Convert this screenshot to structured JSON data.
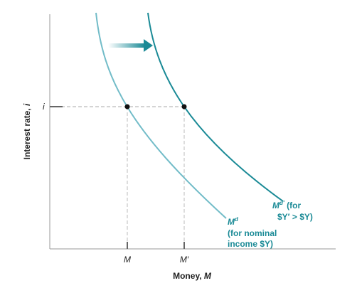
{
  "y_axis_label": {
    "text": "Interest rate, ",
    "variable": "i"
  },
  "x_axis_label": {
    "text": "Money, ",
    "variable": "M"
  },
  "y_tick": "i",
  "x_ticks": [
    "M",
    "M′"
  ],
  "curves": [
    {
      "symbol": "M",
      "superscript": "d",
      "lines": [
        "(for nominal",
        "income $Y)"
      ]
    },
    {
      "symbol": "M",
      "superscript": "d′",
      "suffix": " (for",
      "lines": [
        "$Y′ > $Y)"
      ]
    }
  ]
}
